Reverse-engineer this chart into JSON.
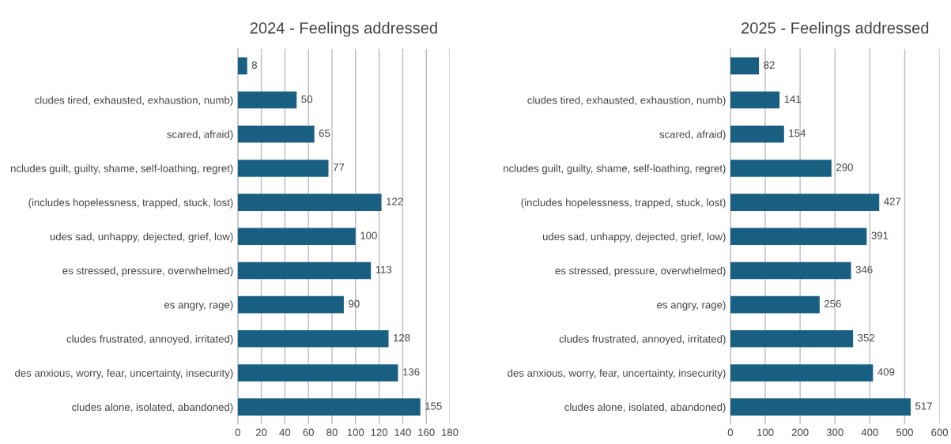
{
  "chart_data": [
    {
      "type": "bar",
      "orientation": "horizontal",
      "title": "2024 - Feelings addressed",
      "categories": [
        null,
        "cludes tired, exhausted, exhaustion, numb)",
        " scared, afraid)",
        "ncludes guilt, guilty, shame, self-loathing, regret)",
        "(includes hopelessness, trapped, stuck, lost)",
        "udes sad, unhappy, dejected, grief, low)",
        "es stressed, pressure, overwhelmed)",
        "es angry, rage)",
        "cludes frustrated, annoyed, irritated)",
        "des anxious, worry, fear, uncertainty, insecurity)",
        "cludes alone, isolated, abandoned)"
      ],
      "values": [
        8,
        50,
        65,
        77,
        122,
        100,
        113,
        90,
        128,
        136,
        155
      ],
      "color": "#185f82",
      "xlim": [
        0,
        180
      ],
      "xticks": [
        0,
        20,
        40,
        60,
        80,
        100,
        120,
        140,
        160,
        180
      ],
      "grid": "x",
      "data_labels": true
    },
    {
      "type": "bar",
      "orientation": "horizontal",
      "title": "2025 - Feelings addressed",
      "categories": [
        null,
        "cludes tired, exhausted, exhaustion, numb)",
        " scared, afraid)",
        "ncludes guilt, guilty, shame, self-loathing, regret)",
        "(includes hopelessness, trapped, stuck, lost)",
        "udes sad, unhappy, dejected, grief, low)",
        "es stressed, pressure, overwhelmed)",
        "es angry, rage)",
        "cludes frustrated, annoyed, irritated)",
        "des anxious, worry, fear, uncertainty, insecurity)",
        "cludes alone, isolated, abandoned)"
      ],
      "values": [
        82,
        141,
        154,
        290,
        427,
        391,
        346,
        256,
        352,
        409,
        517
      ],
      "color": "#185f82",
      "xlim": [
        0,
        600
      ],
      "xticks": [
        0,
        100,
        200,
        300,
        400,
        500,
        600
      ],
      "grid": "x",
      "data_labels": true
    }
  ]
}
